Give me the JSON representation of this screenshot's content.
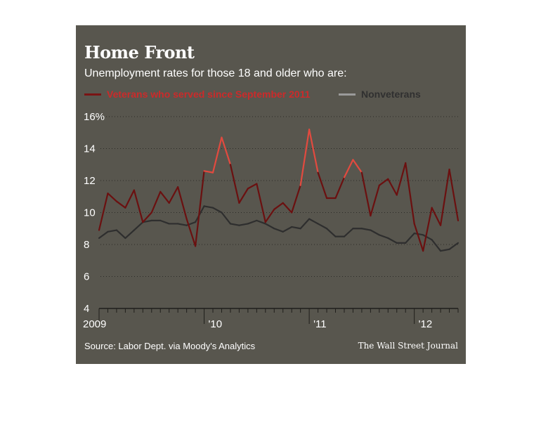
{
  "header": {
    "title": "Home Front",
    "subtitle": "Unemployment rates for those 18 and older who are:"
  },
  "legend": {
    "veterans": "Veterans who served since September 2011",
    "nonveterans": "Nonveterans"
  },
  "footer": {
    "source": "Source: Labor Dept. via Moody's Analytics",
    "credit": "The Wall Street Journal"
  },
  "colors": {
    "panel": "#58564e",
    "veterans_line": "#6b1010",
    "veterans_highlight": "#e24a3f",
    "nonveterans_line": "#2e2e2e"
  },
  "chart_data": {
    "type": "line",
    "x_unit": "month",
    "x_start": "2009-01",
    "ylim": [
      4,
      16
    ],
    "y_ticks": [
      "4",
      "6",
      "8",
      "10",
      "12",
      "14",
      "16%"
    ],
    "x_tick_labels": [
      "2009",
      "'10",
      "'11",
      "'12"
    ],
    "grid": true,
    "series": [
      {
        "name": "Veterans who served since September 2011",
        "values": [
          8.9,
          11.2,
          10.7,
          10.3,
          11.4,
          9.4,
          10.0,
          11.3,
          10.6,
          11.6,
          9.6,
          7.9,
          12.6,
          12.5,
          14.7,
          13.0,
          10.6,
          11.5,
          11.8,
          9.4,
          10.2,
          10.6,
          10.0,
          11.7,
          15.2,
          12.5,
          10.9,
          10.9,
          12.2,
          13.3,
          12.5,
          9.8,
          11.7,
          12.1,
          11.1,
          13.1,
          9.3,
          7.6,
          10.3,
          9.2,
          12.7,
          9.5
        ]
      },
      {
        "name": "Nonveterans",
        "values": [
          8.4,
          8.8,
          8.9,
          8.4,
          8.9,
          9.4,
          9.5,
          9.5,
          9.3,
          9.3,
          9.2,
          9.4,
          10.4,
          10.3,
          10.0,
          9.3,
          9.2,
          9.3,
          9.5,
          9.3,
          9.0,
          8.8,
          9.1,
          9.0,
          9.6,
          9.3,
          9.0,
          8.5,
          8.5,
          9.0,
          9.0,
          8.9,
          8.6,
          8.4,
          8.1,
          8.1,
          8.7,
          8.6,
          8.3,
          7.6,
          7.7,
          8.1
        ]
      }
    ]
  }
}
